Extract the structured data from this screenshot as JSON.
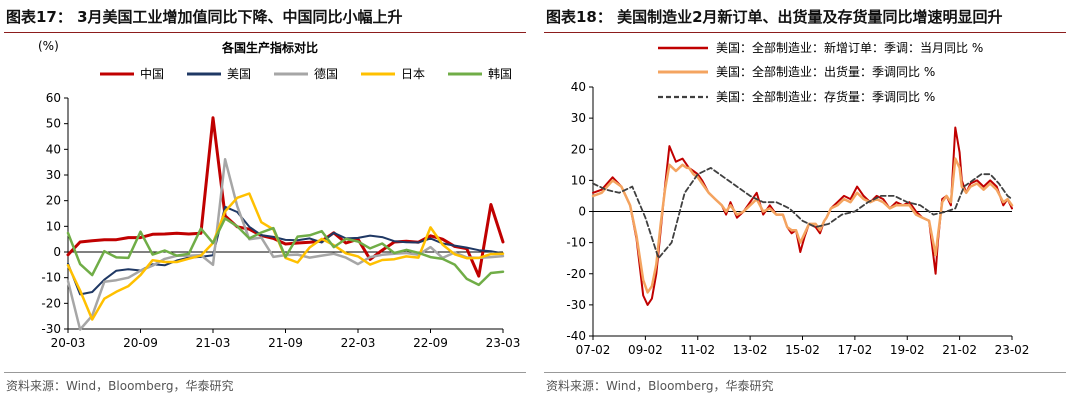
{
  "left": {
    "figure_title": "图表17： 3月美国工业增加值同比下降、中国同比小幅上升",
    "source": "资料来源：Wind，Bloomberg，华泰研究",
    "chart_data": {
      "type": "line",
      "title": "各国生产指标对比",
      "ylabel": "(%)",
      "ylim": [
        -30,
        60
      ],
      "yticks": [
        "60",
        "50",
        "40",
        "30",
        "20",
        "10",
        "0",
        "-10",
        "-20",
        "-30"
      ],
      "yticks_values": [
        60,
        50,
        40,
        30,
        20,
        10,
        0,
        -10,
        -20,
        -30
      ],
      "xticks": [
        "20-03",
        "20-09",
        "21-03",
        "21-09",
        "22-03",
        "22-09",
        "23-03"
      ],
      "xticks_index": [
        0,
        6,
        12,
        18,
        24,
        30,
        36
      ],
      "x_count": 37,
      "legend_position": "top",
      "series": [
        {
          "name": "中国",
          "color": "#c00000",
          "width": 3,
          "values": [
            -1.1,
            3.9,
            4.4,
            4.8,
            4.8,
            5.6,
            5.6,
            6.9,
            7.0,
            7.3,
            7.0,
            7.3,
            52.3,
            14.1,
            9.8,
            8.9,
            6.4,
            5.3,
            3.1,
            3.5,
            3.8,
            4.3,
            7.5,
            3.5,
            5.0,
            -2.9,
            0.7,
            3.9,
            4.2,
            3.8,
            6.3,
            5.0,
            2.2,
            1.3,
            -9.4,
            18.5,
            3.9
          ]
        },
        {
          "name": "美国",
          "color": "#1f3864",
          "width": 2,
          "values": [
            -4.5,
            -16.5,
            -15.6,
            -10.8,
            -7.3,
            -6.7,
            -7.2,
            -4.8,
            -5.2,
            -3.3,
            -2.2,
            -1.9,
            -1.3,
            17.6,
            15.6,
            9.8,
            6.6,
            5.9,
            4.7,
            4.6,
            5.3,
            3.7,
            7.5,
            5.3,
            5.5,
            6.4,
            5.8,
            4.2,
            3.8,
            3.7,
            5.3,
            3.3,
            2.5,
            1.7,
            0.7,
            0.3,
            -0.5
          ]
        },
        {
          "name": "德国",
          "color": "#a6a6a6",
          "width": 2.5,
          "values": [
            -11.3,
            -30.2,
            -24.8,
            -11.6,
            -11.0,
            -10.0,
            -7.3,
            -5.3,
            -2.7,
            -1.5,
            -1.5,
            -1.2,
            -5.0,
            36.1,
            17.9,
            5.0,
            5.6,
            -1.9,
            -1.2,
            -1.0,
            -2.2,
            -1.4,
            -0.7,
            -2.2,
            -4.7,
            -2.0,
            -1.1,
            -0.7,
            -0.4,
            -1.1,
            1.9,
            -2.3,
            -0.2,
            -2.1,
            -2.3,
            -2.0,
            -1.6
          ]
        },
        {
          "name": "日本",
          "color": "#ffc000",
          "width": 2.5,
          "values": [
            -5.2,
            -15.0,
            -26.3,
            -18.2,
            -15.5,
            -13.3,
            -9.0,
            -3.2,
            -3.9,
            -3.9,
            -2.6,
            -1.4,
            3.5,
            15.8,
            21.1,
            22.8,
            11.6,
            8.8,
            -2.3,
            -4.1,
            1.8,
            5.1,
            2.7,
            -0.5,
            -1.7,
            -4.9,
            -3.1,
            -2.8,
            -1.7,
            -2.2,
            9.6,
            2.9,
            -0.9,
            -2.4,
            -2.3,
            -0.8,
            -0.7
          ]
        },
        {
          "name": "韩国",
          "color": "#70ad47",
          "width": 2.5,
          "values": [
            7.4,
            -4.7,
            -9.0,
            0.3,
            -2.1,
            -2.3,
            7.9,
            -1.0,
            0.6,
            -1.4,
            -0.7,
            9.1,
            3.5,
            13.1,
            10.0,
            5.3,
            7.6,
            9.3,
            -1.9,
            6.0,
            6.5,
            8.1,
            1.9,
            5.1,
            4.1,
            1.4,
            3.3,
            -0.4,
            0.8,
            -0.3,
            -2.0,
            -2.7,
            -4.9,
            -10.5,
            -12.8,
            -8.2,
            -7.7
          ]
        }
      ]
    }
  },
  "right": {
    "figure_title": "图表18： 美国制造业2月新订单、出货量及存货量同比增速明显回升",
    "source": "资料来源：Wind，Bloomberg，华泰研究",
    "chart_data": {
      "type": "line",
      "title": "",
      "ylim": [
        -40,
        40
      ],
      "yticks": [
        "40",
        "30",
        "20",
        "10",
        "0",
        "-10",
        "-20",
        "-30",
        "-40"
      ],
      "yticks_values": [
        40,
        30,
        20,
        10,
        0,
        -10,
        -20,
        -30,
        -40
      ],
      "xticks": [
        "07-02",
        "09-02",
        "11-02",
        "13-02",
        "15-02",
        "17-02",
        "19-02",
        "21-02",
        "23-02"
      ],
      "xticks_index": [
        0,
        24,
        48,
        72,
        96,
        120,
        144,
        168,
        192
      ],
      "x_count": 193,
      "legend_position": "top",
      "series": [
        {
          "name": "美国：全部制造业：新增订单：季调：当月同比 %",
          "color": "#c00000",
          "width": 2,
          "dash": "",
          "x": [
            0,
            4,
            9,
            13,
            17,
            20,
            23,
            25,
            27,
            29,
            31,
            33,
            35,
            38,
            41,
            43,
            44,
            46,
            48,
            50,
            53,
            56,
            59,
            61,
            63,
            66,
            69,
            72,
            75,
            78,
            81,
            84,
            87,
            89,
            91,
            93,
            95,
            97,
            99,
            102,
            104,
            106,
            107,
            109,
            112,
            115,
            118,
            121,
            124,
            127,
            130,
            133,
            136,
            139,
            142,
            145,
            148,
            151,
            154,
            157,
            158,
            160,
            162,
            164,
            166,
            168,
            169,
            171,
            173,
            176,
            179,
            182,
            185,
            188,
            190,
            192
          ],
          "values": [
            6,
            7,
            11,
            8,
            2,
            -9,
            -27,
            -30,
            -28,
            -20,
            -6,
            8,
            21,
            16,
            17,
            15,
            14,
            13,
            12,
            10,
            6,
            4,
            2,
            -1,
            3,
            -2,
            0,
            3,
            6,
            -1,
            2,
            -1,
            -1,
            -5,
            -7,
            -6,
            -13,
            -8,
            -4,
            -5,
            -7,
            -3,
            -2,
            1,
            3,
            5,
            4,
            8,
            5,
            3,
            5,
            4,
            1,
            3,
            2,
            3,
            0,
            -2,
            -3,
            -20,
            -10,
            4,
            5,
            2,
            27,
            19,
            10,
            6,
            9,
            10,
            8,
            10,
            8,
            2,
            4,
            1
          ]
        },
        {
          "name": "美国：全部制造业：出货量：季调同比 %",
          "color": "#f4a460",
          "width": 2.5,
          "dash": "",
          "x": [
            0,
            4,
            9,
            13,
            17,
            20,
            23,
            25,
            27,
            29,
            31,
            33,
            35,
            38,
            41,
            43,
            44,
            46,
            48,
            50,
            53,
            56,
            59,
            61,
            63,
            66,
            69,
            72,
            75,
            78,
            81,
            84,
            87,
            89,
            91,
            93,
            95,
            97,
            99,
            102,
            104,
            106,
            107,
            109,
            112,
            115,
            118,
            121,
            124,
            127,
            130,
            133,
            136,
            139,
            142,
            145,
            148,
            151,
            154,
            157,
            158,
            160,
            162,
            164,
            166,
            168,
            169,
            171,
            173,
            176,
            179,
            182,
            185,
            188,
            190,
            192
          ],
          "values": [
            5,
            6,
            10,
            8,
            2,
            -8,
            -22,
            -26,
            -24,
            -17,
            -4,
            7,
            15,
            13,
            15,
            14,
            14,
            12,
            11,
            9,
            6,
            4,
            2,
            0,
            2,
            -1,
            0,
            2,
            4,
            0,
            1,
            -1,
            -1,
            -5,
            -6,
            -6,
            -10,
            -7,
            -4,
            -4,
            -6,
            -3,
            -2,
            1,
            2,
            4,
            3,
            6,
            4,
            3,
            4,
            3,
            1,
            2,
            2,
            2,
            -1,
            -2,
            -3,
            -14,
            -8,
            3,
            5,
            3,
            17,
            14,
            8,
            6,
            8,
            9,
            7,
            9,
            7,
            3,
            4,
            2
          ]
        },
        {
          "name": "美国：全部制造业：存货量：季调同比 %",
          "color": "#404040",
          "width": 1.8,
          "dash": "5,3",
          "x": [
            0,
            6,
            12,
            18,
            24,
            30,
            36,
            42,
            48,
            54,
            60,
            66,
            72,
            78,
            84,
            90,
            96,
            102,
            108,
            114,
            120,
            126,
            132,
            138,
            144,
            150,
            156,
            162,
            166,
            170,
            174,
            178,
            182,
            186,
            190,
            192
          ],
          "values": [
            9,
            7,
            6,
            8,
            -2,
            -15,
            -10,
            6,
            12,
            14,
            11,
            8,
            5,
            3,
            3,
            1,
            -3,
            -5,
            -4,
            -1,
            0,
            3,
            5,
            5,
            3,
            2,
            -1,
            0,
            1,
            8,
            10,
            12,
            12,
            9,
            5,
            4
          ]
        }
      ]
    }
  }
}
